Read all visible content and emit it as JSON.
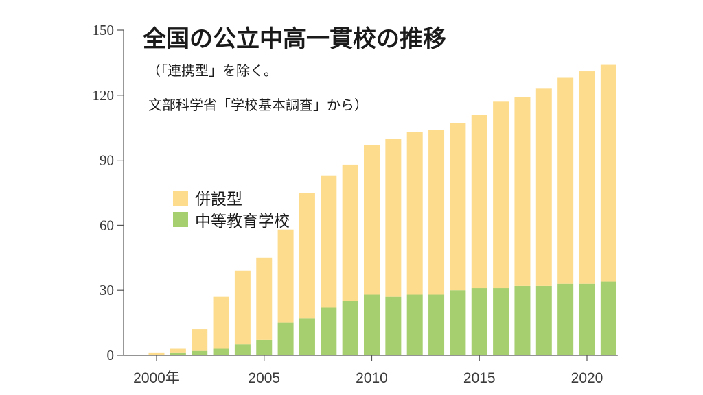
{
  "chart_data": {
    "type": "bar",
    "stacked": true,
    "title": "全国の公立中高一貫校の推移",
    "note_line1": "（「連携型」を除く。",
    "note_line2": "文部科学省「学校基本調査」から）",
    "ylim": [
      0,
      150
    ],
    "yticks": [
      0,
      30,
      60,
      90,
      120,
      150
    ],
    "x_tick_labels": [
      {
        "year": 2000,
        "label": "2000年"
      },
      {
        "year": 2005,
        "label": "2005"
      },
      {
        "year": 2010,
        "label": "2010"
      },
      {
        "year": 2015,
        "label": "2015"
      },
      {
        "year": 2020,
        "label": "2020"
      }
    ],
    "categories": [
      2000,
      2001,
      2002,
      2003,
      2004,
      2005,
      2006,
      2007,
      2008,
      2009,
      2010,
      2011,
      2012,
      2013,
      2014,
      2015,
      2016,
      2017,
      2018,
      2019,
      2020,
      2021
    ],
    "series": [
      {
        "name": "中等教育学校",
        "color": "#a6cf6f",
        "values": [
          0,
          1,
          2,
          3,
          5,
          7,
          15,
          17,
          22,
          25,
          28,
          27,
          28,
          28,
          30,
          31,
          31,
          32,
          32,
          33,
          33,
          34
        ]
      },
      {
        "name": "併設型",
        "color": "#fddc8e",
        "values": [
          1,
          2,
          10,
          24,
          34,
          38,
          43,
          58,
          61,
          63,
          69,
          73,
          75,
          76,
          77,
          80,
          86,
          87,
          91,
          95,
          98,
          100
        ]
      }
    ],
    "legend": [
      {
        "label": "併設型",
        "color": "#fddc8e"
      },
      {
        "label": "中等教育学校",
        "color": "#a6cf6f"
      }
    ]
  }
}
